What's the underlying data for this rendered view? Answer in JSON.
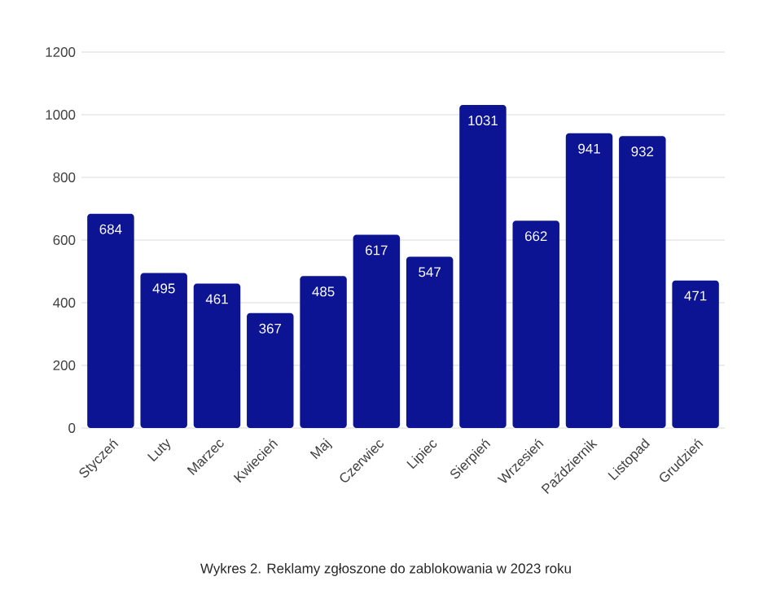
{
  "chart_data": {
    "type": "bar",
    "categories": [
      "Styczeń",
      "Luty",
      "Marzec",
      "Kwiecień",
      "Maj",
      "Czerwiec",
      "Lipiec",
      "Sierpień",
      "Wrzesień",
      "Październik",
      "Listopad",
      "Grudzień"
    ],
    "values": [
      684,
      495,
      461,
      367,
      485,
      617,
      547,
      1031,
      662,
      941,
      932,
      471
    ],
    "color": "#0d1494",
    "ylim": [
      0,
      1200
    ],
    "yticks": [
      0,
      200,
      400,
      600,
      800,
      1000,
      1200
    ],
    "grid": "y",
    "data_labels": true,
    "annotations": [
      "Wykres 2. Reklamy zgłoszone do zablokowania w 2023 roku"
    ]
  }
}
